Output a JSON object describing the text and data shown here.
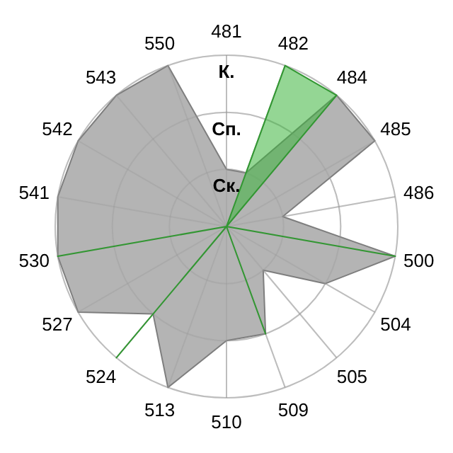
{
  "chart_data": {
    "type": "radar",
    "categories": [
      "481",
      "482",
      "484",
      "485",
      "486",
      "500",
      "504",
      "505",
      "509",
      "510",
      "513",
      "524",
      "527",
      "530",
      "541",
      "542",
      "543",
      "550"
    ],
    "ylim": [
      0,
      3
    ],
    "yticks": [
      {
        "value": 1,
        "label": "Ск."
      },
      {
        "value": 2,
        "label": "Сп."
      },
      {
        "value": 3,
        "label": "К."
      }
    ],
    "grid": true,
    "series": [
      {
        "color": "#b4b4b4",
        "values": [
          1,
          1,
          3,
          3,
          1,
          3,
          2,
          1,
          2,
          2,
          3,
          2,
          3,
          3,
          3,
          3,
          3,
          3
        ]
      },
      {
        "color": "#3cb43c",
        "values": [
          0,
          3,
          3,
          0,
          0,
          3,
          0,
          0,
          2,
          0,
          0,
          3,
          0,
          3,
          0,
          0,
          0,
          0
        ]
      }
    ]
  }
}
